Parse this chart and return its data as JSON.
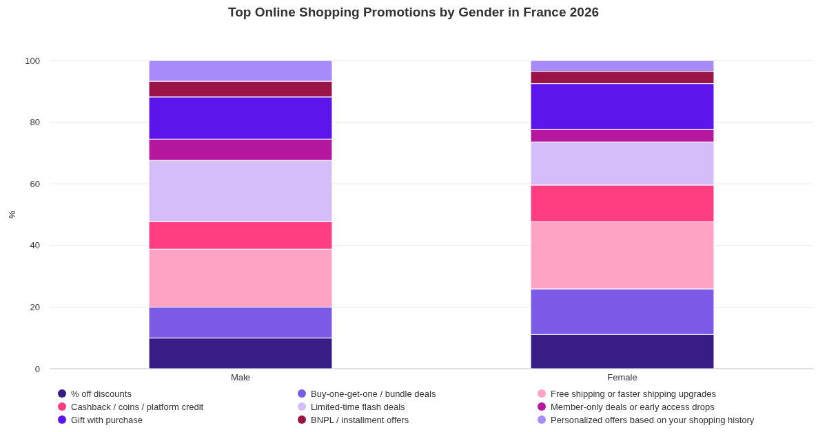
{
  "chart_data": {
    "type": "bar",
    "title": "Top Online Shopping Promotions by Gender in France 2026",
    "ylabel": "%",
    "categories": [
      "Male",
      "Female"
    ],
    "stacked": true,
    "ylim": [
      0,
      100
    ],
    "yticks": [
      0,
      20,
      40,
      60,
      80,
      100
    ],
    "grid": "y",
    "legend": "bottom",
    "series": [
      {
        "name": "% off discounts",
        "color": "#371d85",
        "values": [
          10,
          11.1
        ]
      },
      {
        "name": "Buy-one-get-one / bundle deals",
        "color": "#7b5be6",
        "values": [
          10,
          14.8
        ]
      },
      {
        "name": "Free shipping or faster shipping upgrades",
        "color": "#ffa3c4",
        "values": [
          18.8,
          21.8
        ]
      },
      {
        "name": "Cashback / coins / platform credit",
        "color": "#ff3d80",
        "values": [
          8.9,
          11.9
        ]
      },
      {
        "name": "Limited-time flash deals",
        "color": "#d4bdf9",
        "values": [
          19.9,
          14
        ]
      },
      {
        "name": "Member-only deals or early access drops",
        "color": "#b5179e",
        "values": [
          6.9,
          4
        ]
      },
      {
        "name": "Gift with purchase",
        "color": "#5c16eb",
        "values": [
          13.7,
          14.9
        ]
      },
      {
        "name": "BNPL / installment offers",
        "color": "#9b1447",
        "values": [
          5.1,
          4
        ]
      },
      {
        "name": "Personalized offers based on your shopping history",
        "color": "#a78bfa",
        "values": [
          6.7,
          3.5
        ]
      }
    ]
  }
}
